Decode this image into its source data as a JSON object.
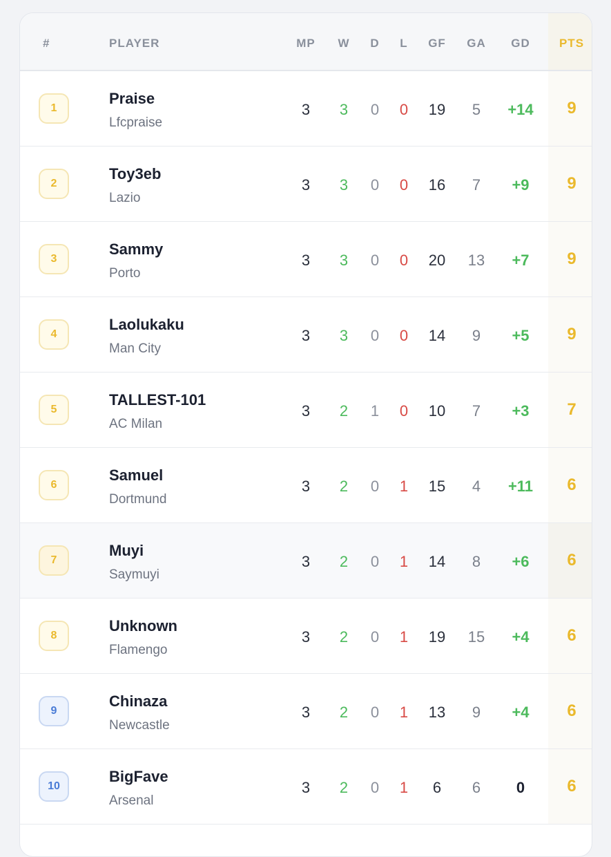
{
  "table": {
    "headers": {
      "rank": "#",
      "player": "PLAYER",
      "mp": "MP",
      "w": "W",
      "d": "D",
      "l": "L",
      "gf": "GF",
      "ga": "GA",
      "gd": "GD",
      "pts": "PTS"
    },
    "rows": [
      {
        "rank": "1",
        "name": "Praise",
        "team": "Lfcpraise",
        "mp": "3",
        "w": "3",
        "d": "0",
        "l": "0",
        "gf": "19",
        "ga": "5",
        "gd": "+14",
        "pts": "9"
      },
      {
        "rank": "2",
        "name": "Toy3eb",
        "team": "Lazio",
        "mp": "3",
        "w": "3",
        "d": "0",
        "l": "0",
        "gf": "16",
        "ga": "7",
        "gd": "+9",
        "pts": "9"
      },
      {
        "rank": "3",
        "name": "Sammy",
        "team": "Porto",
        "mp": "3",
        "w": "3",
        "d": "0",
        "l": "0",
        "gf": "20",
        "ga": "13",
        "gd": "+7",
        "pts": "9"
      },
      {
        "rank": "4",
        "name": "Laolukaku",
        "team": "Man City",
        "mp": "3",
        "w": "3",
        "d": "0",
        "l": "0",
        "gf": "14",
        "ga": "9",
        "gd": "+5",
        "pts": "9"
      },
      {
        "rank": "5",
        "name": "TALLEST-101",
        "team": "AC Milan",
        "mp": "3",
        "w": "2",
        "d": "1",
        "l": "0",
        "gf": "10",
        "ga": "7",
        "gd": "+3",
        "pts": "7"
      },
      {
        "rank": "6",
        "name": "Samuel",
        "team": "Dortmund",
        "mp": "3",
        "w": "2",
        "d": "0",
        "l": "1",
        "gf": "15",
        "ga": "4",
        "gd": "+11",
        "pts": "6"
      },
      {
        "rank": "7",
        "name": "Muyi",
        "team": "Saymuyi",
        "mp": "3",
        "w": "2",
        "d": "0",
        "l": "1",
        "gf": "14",
        "ga": "8",
        "gd": "+6",
        "pts": "6"
      },
      {
        "rank": "8",
        "name": "Unknown",
        "team": "Flamengo",
        "mp": "3",
        "w": "2",
        "d": "0",
        "l": "1",
        "gf": "19",
        "ga": "15",
        "gd": "+4",
        "pts": "6"
      },
      {
        "rank": "9",
        "name": "Chinaza",
        "team": "Newcastle",
        "mp": "3",
        "w": "2",
        "d": "0",
        "l": "1",
        "gf": "13",
        "ga": "9",
        "gd": "+4",
        "pts": "6"
      },
      {
        "rank": "10",
        "name": "BigFave",
        "team": "Arsenal",
        "mp": "3",
        "w": "2",
        "d": "0",
        "l": "1",
        "gf": "6",
        "ga": "6",
        "gd": "0",
        "pts": "6"
      }
    ]
  },
  "colors": {
    "win": "#4cba5c",
    "loss": "#d84a45",
    "points": "#eab92d",
    "rank_blue": "#4a7cd6"
  }
}
